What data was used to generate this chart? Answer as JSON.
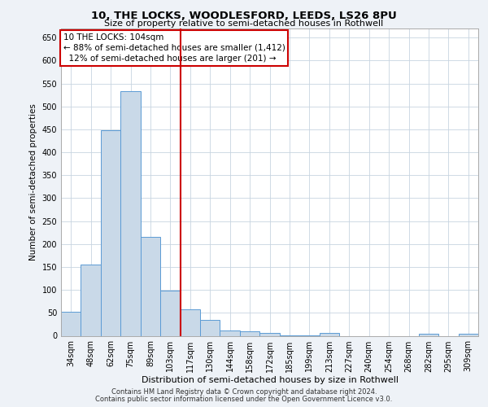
{
  "title1": "10, THE LOCKS, WOODLESFORD, LEEDS, LS26 8PU",
  "title2": "Size of property relative to semi-detached houses in Rothwell",
  "xlabel": "Distribution of semi-detached houses by size in Rothwell",
  "ylabel": "Number of semi-detached properties",
  "categories": [
    "34sqm",
    "48sqm",
    "62sqm",
    "75sqm",
    "89sqm",
    "103sqm",
    "117sqm",
    "130sqm",
    "144sqm",
    "158sqm",
    "172sqm",
    "185sqm",
    "199sqm",
    "213sqm",
    "227sqm",
    "240sqm",
    "254sqm",
    "268sqm",
    "282sqm",
    "295sqm",
    "309sqm"
  ],
  "values": [
    52,
    155,
    448,
    533,
    215,
    98,
    58,
    35,
    11,
    9,
    7,
    1,
    1,
    6,
    0,
    0,
    0,
    0,
    5,
    0,
    5
  ],
  "bar_color": "#c9d9e8",
  "bar_edge_color": "#5b9bd5",
  "vline_color": "#cc0000",
  "annotation_box_color": "#cc0000",
  "property_label": "10 THE LOCKS: 104sqm",
  "pct_smaller": 88,
  "n_smaller": 1412,
  "pct_larger": 12,
  "n_larger": 201,
  "vline_pos": 5.5,
  "footer1": "Contains HM Land Registry data © Crown copyright and database right 2024.",
  "footer2": "Contains public sector information licensed under the Open Government Licence v3.0.",
  "ylim": [
    0,
    670
  ],
  "yticks": [
    0,
    50,
    100,
    150,
    200,
    250,
    300,
    350,
    400,
    450,
    500,
    550,
    600,
    650
  ],
  "bg_color": "#eef2f7",
  "plot_bg_color": "#ffffff",
  "grid_color": "#c8d4e0",
  "title1_fontsize": 9.5,
  "title2_fontsize": 8.0,
  "ylabel_fontsize": 7.5,
  "xlabel_fontsize": 8.0,
  "tick_fontsize": 7.0,
  "ann_fontsize": 7.5,
  "footer_fontsize": 6.0
}
